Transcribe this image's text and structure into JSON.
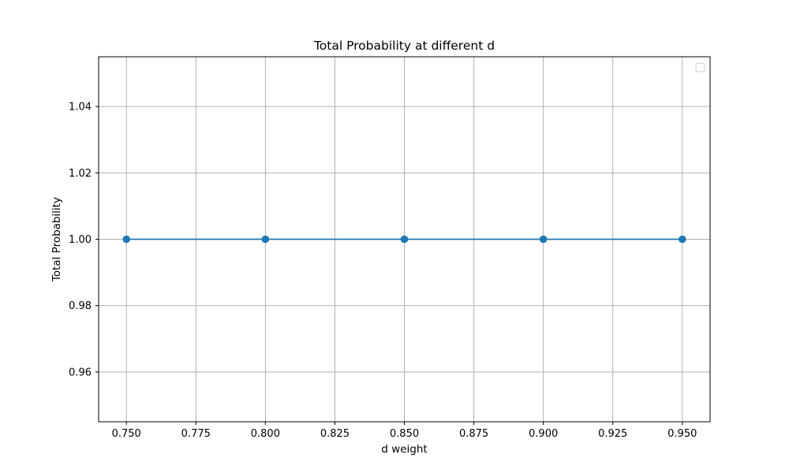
{
  "chart_data": {
    "type": "line",
    "title": "Total Probability at different d",
    "xlabel": "d weight",
    "ylabel": "Total Probability",
    "x": [
      0.75,
      0.8,
      0.85,
      0.9,
      0.95
    ],
    "series": [
      {
        "values": [
          1.0,
          1.0,
          1.0,
          1.0,
          1.0
        ],
        "color": "#1f77b4",
        "marker": "circle"
      }
    ],
    "xlim": [
      0.74,
      0.96
    ],
    "ylim": [
      0.945,
      1.055
    ],
    "xticks": [
      "0.750",
      "0.775",
      "0.800",
      "0.825",
      "0.850",
      "0.875",
      "0.900",
      "0.925",
      "0.950"
    ],
    "yticks": [
      "0.96",
      "0.98",
      "1.00",
      "1.02",
      "1.04"
    ],
    "grid": true,
    "legend": "top-right",
    "legend_entries": []
  }
}
